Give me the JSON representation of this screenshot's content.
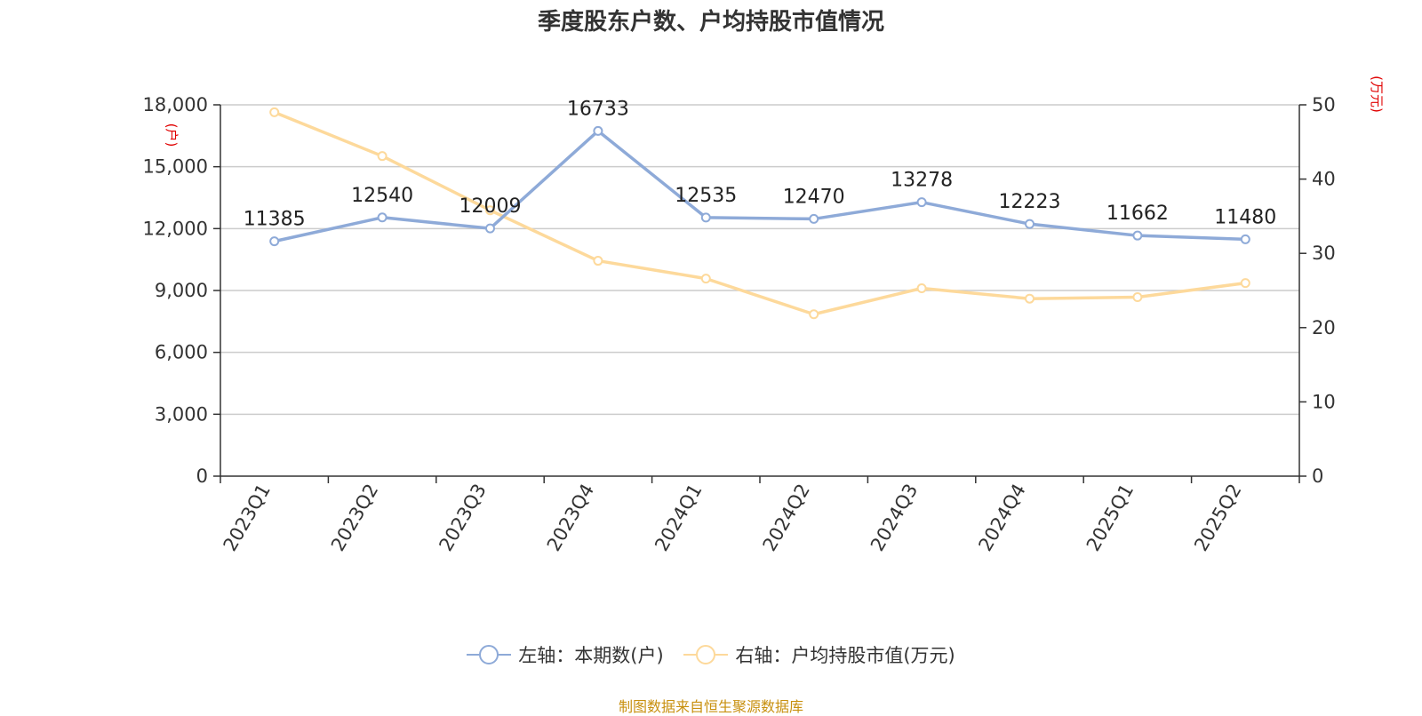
{
  "title": "季度股东户数、户均持股市值情况",
  "source": "制图数据来自恒生聚源数据库",
  "chart_data": {
    "type": "line",
    "categories": [
      "2023Q1",
      "2023Q2",
      "2023Q3",
      "2023Q4",
      "2024Q1",
      "2024Q2",
      "2024Q3",
      "2024Q4",
      "2025Q1",
      "2025Q2"
    ],
    "left_axis": {
      "unit_label": "(户)",
      "ylim": [
        0,
        18000
      ],
      "ticks": [
        0,
        3000,
        6000,
        9000,
        12000,
        15000,
        18000
      ],
      "tick_labels": [
        "0",
        "3,000",
        "6,000",
        "9,000",
        "12,000",
        "15,000",
        "18,000"
      ]
    },
    "right_axis": {
      "unit_label": "(万元)",
      "ylim": [
        0,
        50
      ],
      "ticks": [
        0,
        10,
        20,
        30,
        40,
        50
      ],
      "tick_labels": [
        "0",
        "10",
        "20",
        "30",
        "40",
        "50"
      ]
    },
    "series": [
      {
        "name": "左轴：本期数(户)",
        "axis": "left",
        "color": "#8eaad8",
        "values": [
          11385,
          12540,
          12009,
          16733,
          12535,
          12470,
          13278,
          12223,
          11662,
          11480
        ],
        "data_labels": [
          "11385",
          "12540",
          "12009",
          "16733",
          "12535",
          "12470",
          "13278",
          "12223",
          "11662",
          "11480"
        ]
      },
      {
        "name": "右轴：户均持股市值(万元)",
        "axis": "right",
        "color": "#fdd99b",
        "values": [
          49.0,
          43.1,
          35.8,
          29.0,
          26.6,
          21.8,
          25.3,
          23.9,
          24.1,
          26.0
        ]
      }
    ],
    "grid": true,
    "legend_position": "bottom-center"
  }
}
